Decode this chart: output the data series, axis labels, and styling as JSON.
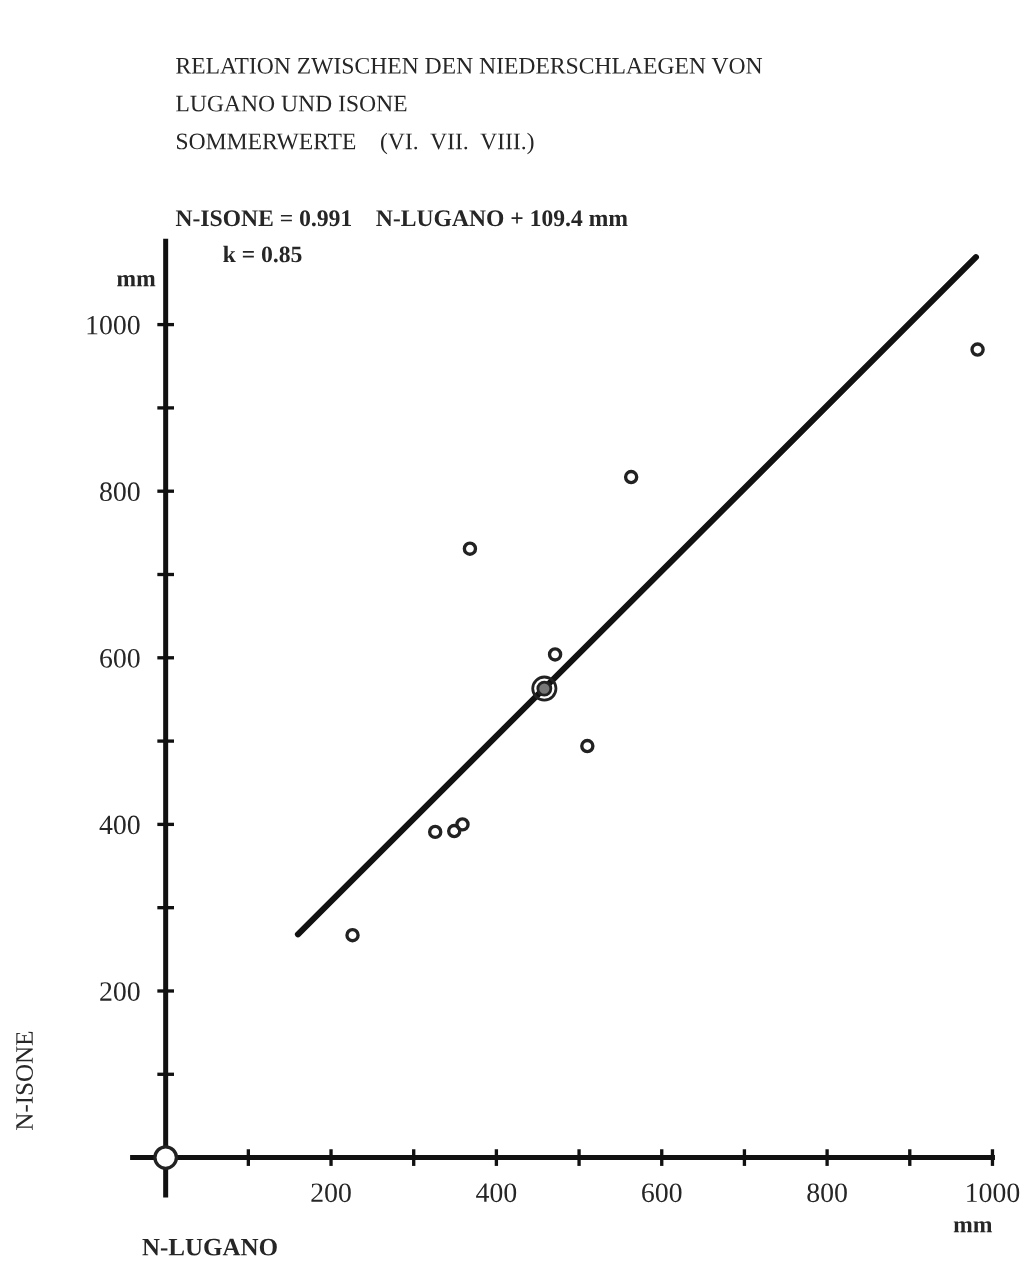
{
  "chart_data": {
    "type": "scatter",
    "title": "RELATION ZWISCHEN DEN NIEDERSCHLAEGEN VON\nLUGANO UND ISONE\nSOMMERWERTE    (VI.  VII.  VIII.)",
    "subtitle": "N-ISONE = 0.991    N-LUGANO + 109.4 mm\n        k = 0.85",
    "xlabel": "N-LUGANO",
    "ylabel": "N-ISONE",
    "annotations": [
      "mm",
      "mm"
    ],
    "series": [
      {
        "type": "scatter",
        "color": "#222222",
        "marker": "circle",
        "x": [
          563,
          368,
          471,
          510,
          326,
          349,
          359,
          226,
          982
        ],
        "values": [
          817,
          731,
          604,
          494,
          391,
          392,
          400,
          267,
          970
        ]
      },
      {
        "type": "scatter",
        "color": "#222222",
        "marker": "circle",
        "x": [
          458
        ],
        "values": [
          563
        ]
      },
      {
        "type": "scatter",
        "color": "#222222",
        "marker": "circle",
        "x": [
          0
        ],
        "values": [
          0
        ]
      },
      {
        "type": "line",
        "color": "#111111",
        "marker": "none",
        "line_style": "solid",
        "x": [
          160,
          980
        ],
        "values": [
          268,
          1081
        ]
      }
    ],
    "xlim": [
      -40,
      1000
    ],
    "xticks": [
      {
        "value": 100,
        "label": null
      },
      200,
      {
        "value": 300,
        "label": null
      },
      400,
      {
        "value": 500,
        "label": null
      },
      600,
      {
        "value": 700,
        "label": null
      },
      800,
      {
        "value": 900,
        "label": null
      },
      1000
    ],
    "ylim": [
      -45,
      1100
    ],
    "yticks": [
      {
        "value": 100,
        "label": null
      },
      200,
      {
        "value": 300,
        "label": null
      },
      400,
      {
        "value": 500,
        "label": null
      },
      600,
      {
        "value": 700,
        "label": null
      },
      800,
      {
        "value": 900,
        "label": null
      },
      1000
    ],
    "grid": false,
    "legend": false
  }
}
